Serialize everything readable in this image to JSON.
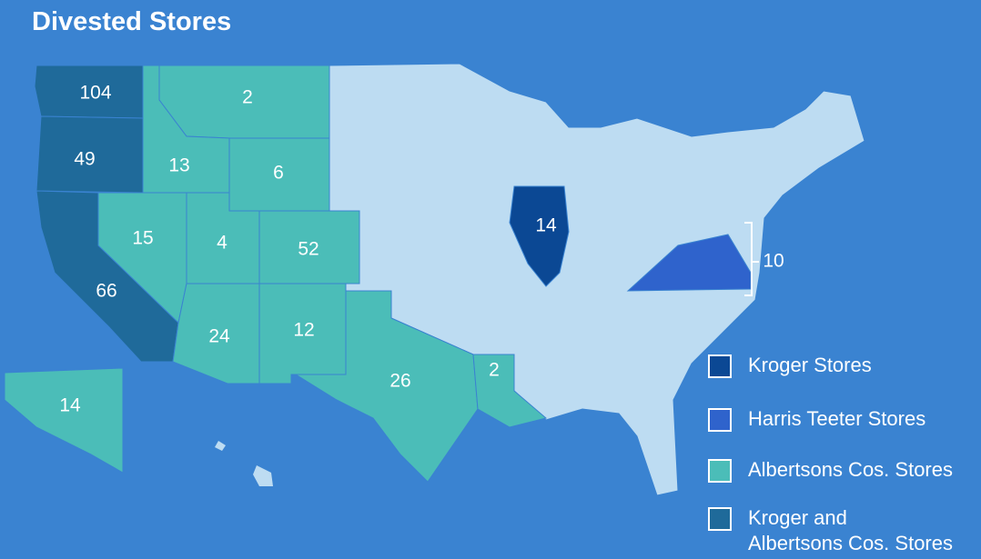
{
  "title": "Divested Stores",
  "legend": [
    {
      "lines": [
        "Kroger Stores"
      ],
      "color": "#0b4894"
    },
    {
      "lines": [
        "Harris Teeter Stores"
      ],
      "color": "#2f63cc"
    },
    {
      "lines": [
        "Albertsons Cos. Stores"
      ],
      "color": "#4bbdb8"
    },
    {
      "lines": [
        "Kroger and",
        "Albertsons Cos. Stores"
      ],
      "color": "#1f6a9a"
    }
  ],
  "states": [
    {
      "value": 104,
      "color": "#1f6a9a"
    },
    {
      "value": 49,
      "color": "#1f6a9a"
    },
    {
      "value": 66,
      "color": "#1f6a9a"
    },
    {
      "value": 2,
      "color": "#4bbdb8"
    },
    {
      "value": 13,
      "color": "#4bbdb8"
    },
    {
      "value": 6,
      "color": "#4bbdb8"
    },
    {
      "value": 15,
      "color": "#4bbdb8"
    },
    {
      "value": 4,
      "color": "#4bbdb8"
    },
    {
      "value": 52,
      "color": "#4bbdb8"
    },
    {
      "value": 24,
      "color": "#4bbdb8"
    },
    {
      "value": 12,
      "color": "#4bbdb8"
    },
    {
      "value": 26,
      "color": "#4bbdb8"
    },
    {
      "value": 2,
      "color": "#4bbdb8"
    },
    {
      "value": 14,
      "color": "#4bbdb8"
    },
    {
      "value": 14,
      "color": "#0b4894"
    },
    {
      "value": 10,
      "color": "#2f63cc"
    }
  ]
}
